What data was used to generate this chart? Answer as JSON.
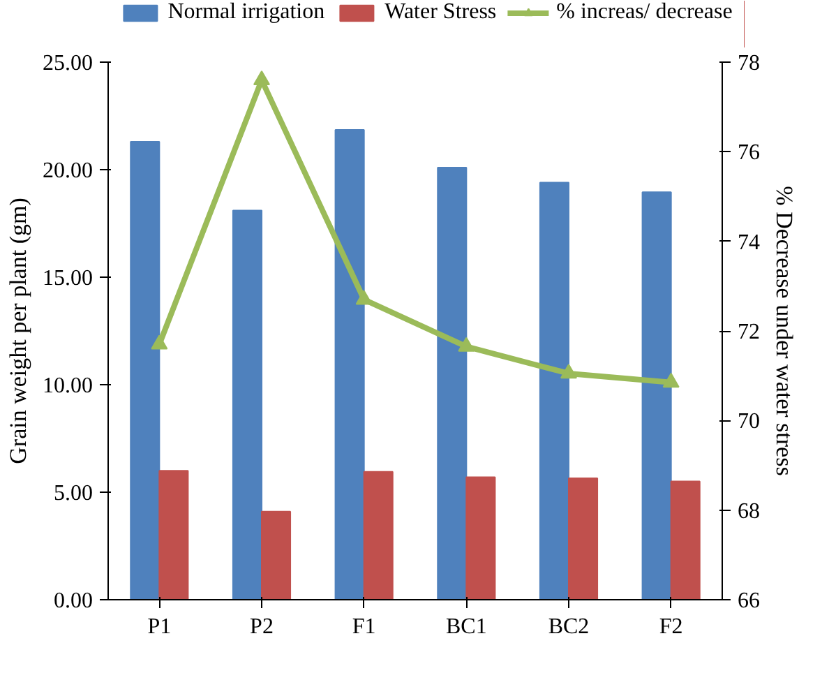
{
  "chart_data": {
    "type": "bar",
    "categories": [
      "P1",
      "P2",
      "F1",
      "BC1",
      "BC2",
      "F2"
    ],
    "ylabel": "Grain weight per plant (gm)",
    "y2label": "% Decrease under water stress",
    "ylim": [
      0,
      25
    ],
    "yticks": [
      {
        "value": 0,
        "label": "0.00"
      },
      {
        "value": 5,
        "label": "5.00"
      },
      {
        "value": 10,
        "label": "10.00"
      },
      {
        "value": 15,
        "label": "15.00"
      },
      {
        "value": 20,
        "label": "20.00"
      },
      {
        "value": 25,
        "label": "25.00"
      }
    ],
    "y2lim": [
      66,
      78
    ],
    "y2ticks": [
      66,
      68,
      70,
      72,
      74,
      76,
      78
    ],
    "grid": false,
    "legend": "top",
    "series": [
      {
        "name": "Normal irrigation",
        "color": "#4f81bd",
        "values": [
          21.3,
          18.1,
          21.85,
          20.1,
          19.4,
          18.95
        ]
      },
      {
        "name": "Water Stress",
        "color": "#c0504d",
        "values": [
          6.0,
          4.1,
          5.95,
          5.7,
          5.65,
          5.5
        ]
      },
      {
        "name": "% increas/ decrease",
        "type": "line",
        "axis": "y2",
        "marker": "triangle",
        "color": "#9bbb59",
        "values": [
          71.7,
          77.6,
          72.7,
          71.65,
          71.05,
          70.85
        ]
      }
    ]
  }
}
